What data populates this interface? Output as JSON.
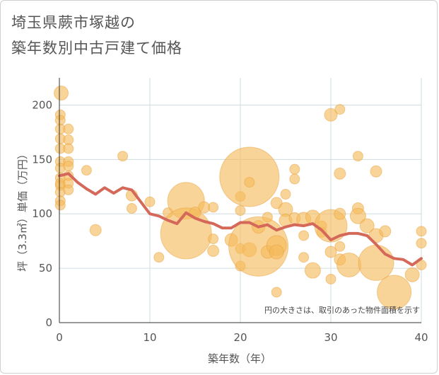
{
  "title": {
    "line1": "埼玉県蕨市塚越の",
    "line2": "築年数別中古戸建て価格"
  },
  "chart_data": {
    "type": "scatter",
    "title": "埼玉県蕨市塚越の 築年数別中古戸建て価格",
    "xlabel": "築年数（年）",
    "ylabel": "坪（3.3㎡）単価（万円）",
    "xlim": [
      0,
      40
    ],
    "ylim": [
      0,
      225
    ],
    "xticks": [
      0,
      10,
      20,
      30,
      40
    ],
    "yticks": [
      0,
      50,
      100,
      150,
      200
    ],
    "grid": true,
    "note": "円の大きさは、取引のあった物件面積を示す",
    "colors": {
      "bubble": "#f5b95a",
      "line": "#d4695a",
      "grid": "#cfdde0"
    },
    "bubbles": [
      {
        "x": 0.2,
        "y": 211,
        "s": 10
      },
      {
        "x": 0.1,
        "y": 191,
        "s": 7
      },
      {
        "x": 0.1,
        "y": 186,
        "s": 7
      },
      {
        "x": 0.1,
        "y": 178,
        "s": 7
      },
      {
        "x": 0.1,
        "y": 169,
        "s": 7
      },
      {
        "x": 0.1,
        "y": 160,
        "s": 7
      },
      {
        "x": 0.1,
        "y": 148,
        "s": 7
      },
      {
        "x": 0.1,
        "y": 142,
        "s": 7
      },
      {
        "x": 0.1,
        "y": 133,
        "s": 7
      },
      {
        "x": 0.1,
        "y": 126,
        "s": 7
      },
      {
        "x": 0.1,
        "y": 120,
        "s": 7
      },
      {
        "x": 0.1,
        "y": 112,
        "s": 7
      },
      {
        "x": 0.1,
        "y": 108,
        "s": 7
      },
      {
        "x": 0.1,
        "y": 128,
        "s": 7
      },
      {
        "x": 1,
        "y": 178,
        "s": 7
      },
      {
        "x": 1,
        "y": 168,
        "s": 7
      },
      {
        "x": 1,
        "y": 160,
        "s": 7
      },
      {
        "x": 1,
        "y": 148,
        "s": 7
      },
      {
        "x": 1,
        "y": 144,
        "s": 7
      },
      {
        "x": 1,
        "y": 135,
        "s": 7
      },
      {
        "x": 1,
        "y": 128,
        "s": 7
      },
      {
        "x": 1,
        "y": 122,
        "s": 7
      },
      {
        "x": 3,
        "y": 140,
        "s": 7
      },
      {
        "x": 4,
        "y": 85,
        "s": 8
      },
      {
        "x": 7,
        "y": 153,
        "s": 7
      },
      {
        "x": 8,
        "y": 117,
        "s": 8
      },
      {
        "x": 8,
        "y": 105,
        "s": 7
      },
      {
        "x": 10,
        "y": 111,
        "s": 7
      },
      {
        "x": 11,
        "y": 60,
        "s": 7
      },
      {
        "x": 12,
        "y": 101,
        "s": 7
      },
      {
        "x": 14,
        "y": 112,
        "s": 26
      },
      {
        "x": 14,
        "y": 82,
        "s": 36
      },
      {
        "x": 15,
        "y": 101,
        "s": 8
      },
      {
        "x": 16,
        "y": 106,
        "s": 8
      },
      {
        "x": 17,
        "y": 106,
        "s": 7
      },
      {
        "x": 17,
        "y": 77,
        "s": 7
      },
      {
        "x": 17,
        "y": 66,
        "s": 8
      },
      {
        "x": 19,
        "y": 76,
        "s": 9
      },
      {
        "x": 20,
        "y": 116,
        "s": 7
      },
      {
        "x": 20,
        "y": 103,
        "s": 7
      },
      {
        "x": 20,
        "y": 68,
        "s": 7
      },
      {
        "x": 20,
        "y": 52,
        "s": 7
      },
      {
        "x": 21,
        "y": 134,
        "s": 42
      },
      {
        "x": 21,
        "y": 129,
        "s": 7
      },
      {
        "x": 21,
        "y": 67,
        "s": 10
      },
      {
        "x": 22,
        "y": 70,
        "s": 42
      },
      {
        "x": 22,
        "y": 88,
        "s": 9
      },
      {
        "x": 23,
        "y": 97,
        "s": 7
      },
      {
        "x": 23,
        "y": 65,
        "s": 9
      },
      {
        "x": 24,
        "y": 110,
        "s": 8
      },
      {
        "x": 24,
        "y": 71,
        "s": 14
      },
      {
        "x": 24,
        "y": 65,
        "s": 10
      },
      {
        "x": 24,
        "y": 28,
        "s": 7
      },
      {
        "x": 25,
        "y": 118,
        "s": 7
      },
      {
        "x": 25,
        "y": 104,
        "s": 10
      },
      {
        "x": 25,
        "y": 94,
        "s": 9
      },
      {
        "x": 26,
        "y": 141,
        "s": 7
      },
      {
        "x": 26,
        "y": 132,
        "s": 7
      },
      {
        "x": 26,
        "y": 96,
        "s": 8
      },
      {
        "x": 27,
        "y": 95,
        "s": 10
      },
      {
        "x": 27,
        "y": 80,
        "s": 7
      },
      {
        "x": 27,
        "y": 60,
        "s": 7
      },
      {
        "x": 28,
        "y": 97,
        "s": 10
      },
      {
        "x": 28,
        "y": 48,
        "s": 11
      },
      {
        "x": 29,
        "y": 89,
        "s": 7
      },
      {
        "x": 29,
        "y": 83,
        "s": 7
      },
      {
        "x": 30,
        "y": 191,
        "s": 9
      },
      {
        "x": 30,
        "y": 89,
        "s": 23
      },
      {
        "x": 30,
        "y": 65,
        "s": 8
      },
      {
        "x": 30,
        "y": 40,
        "s": 7
      },
      {
        "x": 31,
        "y": 196,
        "s": 7
      },
      {
        "x": 31,
        "y": 137,
        "s": 8
      },
      {
        "x": 31,
        "y": 100,
        "s": 8
      },
      {
        "x": 31,
        "y": 70,
        "s": 7
      },
      {
        "x": 31,
        "y": 58,
        "s": 8
      },
      {
        "x": 32,
        "y": 53,
        "s": 17
      },
      {
        "x": 33,
        "y": 153,
        "s": 7
      },
      {
        "x": 33,
        "y": 105,
        "s": 8
      },
      {
        "x": 33,
        "y": 98,
        "s": 11
      },
      {
        "x": 34,
        "y": 89,
        "s": 10
      },
      {
        "x": 35,
        "y": 139,
        "s": 8
      },
      {
        "x": 35,
        "y": 55,
        "s": 25
      },
      {
        "x": 35,
        "y": 80,
        "s": 10
      },
      {
        "x": 36,
        "y": 84,
        "s": 8
      },
      {
        "x": 37,
        "y": 28,
        "s": 24
      },
      {
        "x": 39,
        "y": 44,
        "s": 10
      },
      {
        "x": 40,
        "y": 84,
        "s": 7
      },
      {
        "x": 40,
        "y": 73,
        "s": 7
      },
      {
        "x": 40,
        "y": 53,
        "s": 7
      }
    ],
    "trend": {
      "name": "",
      "x": [
        0,
        1,
        2,
        3,
        4,
        5,
        6,
        7,
        8,
        9,
        10,
        11,
        12,
        13,
        14,
        15,
        16,
        17,
        18,
        19,
        20,
        21,
        22,
        23,
        24,
        25,
        26,
        27,
        28,
        29,
        30,
        31,
        32,
        33,
        34,
        35,
        36,
        37,
        38,
        39,
        40
      ],
      "y": [
        135,
        137,
        129,
        123,
        118,
        124,
        119,
        124,
        122,
        111,
        100,
        98,
        94,
        91,
        101,
        96,
        93,
        91,
        87,
        87,
        92,
        92,
        88,
        90,
        85,
        88,
        90,
        89,
        91,
        85,
        76,
        80,
        82,
        82,
        80,
        72,
        63,
        59,
        58,
        53,
        59
      ]
    }
  }
}
